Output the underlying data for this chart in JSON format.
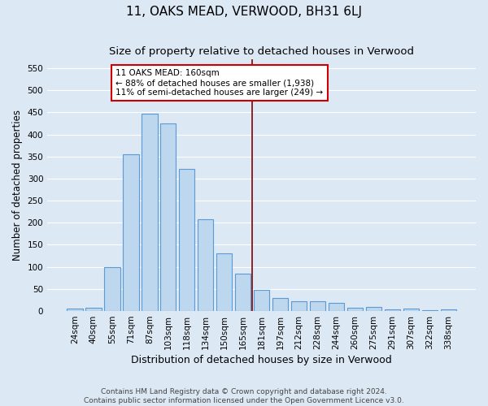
{
  "title": "11, OAKS MEAD, VERWOOD, BH31 6LJ",
  "subtitle": "Size of property relative to detached houses in Verwood",
  "xlabel": "Distribution of detached houses by size in Verwood",
  "ylabel": "Number of detached properties",
  "categories": [
    "24sqm",
    "40sqm",
    "55sqm",
    "71sqm",
    "87sqm",
    "103sqm",
    "118sqm",
    "134sqm",
    "150sqm",
    "165sqm",
    "181sqm",
    "197sqm",
    "212sqm",
    "228sqm",
    "244sqm",
    "260sqm",
    "275sqm",
    "291sqm",
    "307sqm",
    "322sqm",
    "338sqm"
  ],
  "values": [
    5,
    7,
    100,
    355,
    447,
    424,
    321,
    207,
    130,
    85,
    48,
    29,
    23,
    23,
    19,
    7,
    10,
    3,
    5,
    2,
    3
  ],
  "bar_color": "#bdd7ee",
  "bar_edge_color": "#5b9bd5",
  "bar_linewidth": 0.8,
  "vline_x": 9.5,
  "vline_color": "#800000",
  "annotation_text": "11 OAKS MEAD: 160sqm\n← 88% of detached houses are smaller (1,938)\n11% of semi-detached houses are larger (249) →",
  "annotation_box_color": "#ffffff",
  "annotation_box_edge_color": "#cc0000",
  "ylim": [
    0,
    570
  ],
  "yticks": [
    0,
    50,
    100,
    150,
    200,
    250,
    300,
    350,
    400,
    450,
    500,
    550
  ],
  "background_color": "#dde8f5",
  "grid_color": "#ffffff",
  "footer_line1": "Contains HM Land Registry data © Crown copyright and database right 2024.",
  "footer_line2": "Contains public sector information licensed under the Open Government Licence v3.0.",
  "title_fontsize": 11,
  "subtitle_fontsize": 9.5,
  "xlabel_fontsize": 9,
  "ylabel_fontsize": 8.5,
  "tick_fontsize": 7.5,
  "annotation_fontsize": 7.5,
  "footer_fontsize": 6.5
}
